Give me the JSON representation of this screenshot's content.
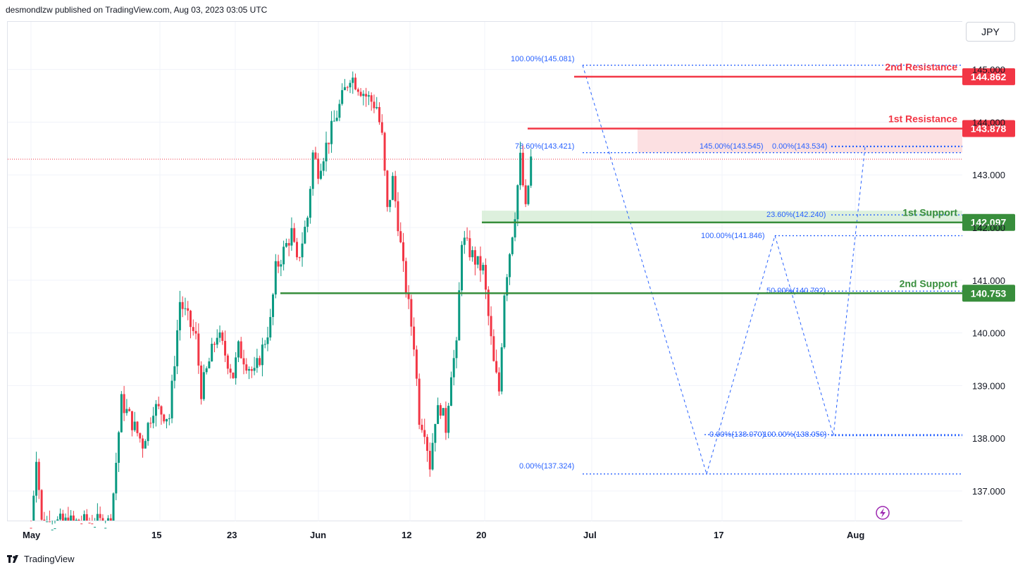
{
  "header": {
    "published_text": "desmondlzw published on TradingView.com, Aug 03, 2023 03:05 UTC"
  },
  "currency": "JPY",
  "footer": {
    "brand": "TradingView"
  },
  "colors": {
    "up": "#089981",
    "down": "#f23645",
    "resistance": "#f23645",
    "support": "#388e3c",
    "fib": "#2962ff",
    "resistance_zone": "#fbd5d8",
    "support_zone": "#d4ecd4"
  },
  "chart_data": {
    "type": "candlestick",
    "y_axis": {
      "ticks": [
        "145.000",
        "144.000",
        "143.000",
        "142.000",
        "141.000",
        "140.000",
        "139.000",
        "138.000",
        "137.000"
      ],
      "range": [
        136.4,
        145.35
      ]
    },
    "x_axis": {
      "labels": [
        "May",
        "15",
        "23",
        "Jun",
        "12",
        "20",
        "Jul",
        "17",
        "Aug"
      ]
    },
    "levels": [
      {
        "name": "2nd Resistance",
        "label": "2nd Resistance",
        "price": 144.862,
        "price_label": "144.862",
        "kind": "resistance"
      },
      {
        "name": "1st Resistance",
        "label": "1st Resistance",
        "price": 143.878,
        "price_label": "143.878",
        "kind": "resistance"
      },
      {
        "name": "1st Support",
        "label": "1st Support",
        "price": 142.097,
        "price_label": "142.097",
        "kind": "support"
      },
      {
        "name": "2nd Support",
        "label": "2nd Support",
        "price": 140.753,
        "price_label": "140.753",
        "kind": "support"
      }
    ],
    "fib_labels": [
      {
        "text": "100.00%(145.081)",
        "price": 145.081
      },
      {
        "text": "78.60%(143.421)",
        "price": 143.421
      },
      {
        "text": "0.00%(137.324)",
        "price": 137.324
      },
      {
        "text": "145.00%(143.545)",
        "price": 143.545
      },
      {
        "text": "0.00%(143.534)",
        "price": 143.534
      },
      {
        "text": "23.60%(142.240)",
        "price": 142.24
      },
      {
        "text": "100.00%(141.846)",
        "price": 141.846
      },
      {
        "text": "50.00%(140.792)",
        "price": 140.792
      },
      {
        "text": "0.00%(138.070)",
        "price": 138.07
      },
      {
        "text": "100.00%(138.050)",
        "price": 138.05
      }
    ],
    "anchor_points": [
      {
        "date": "May 01",
        "price": 136.3
      },
      {
        "date": "May 02",
        "price": 137.7
      },
      {
        "date": "May 03",
        "price": 136.4
      },
      {
        "date": "May 16",
        "price": 136.4
      },
      {
        "date": "May 18",
        "price": 138.7
      },
      {
        "date": "May 22",
        "price": 137.9
      },
      {
        "date": "May 24",
        "price": 138.6
      },
      {
        "date": "May 27",
        "price": 138.4
      },
      {
        "date": "May 29",
        "price": 140.6
      },
      {
        "date": "Jun 01",
        "price": 139.9
      },
      {
        "date": "Jun 02",
        "price": 138.9
      },
      {
        "date": "Jun 05",
        "price": 140.0
      },
      {
        "date": "Jun 08",
        "price": 139.2
      },
      {
        "date": "Jun 09",
        "price": 139.7
      },
      {
        "date": "Jun 12",
        "price": 139.2
      },
      {
        "date": "Jun 15",
        "price": 140.2
      },
      {
        "date": "Jun 16",
        "price": 141.2
      },
      {
        "date": "Jun 19",
        "price": 141.9
      },
      {
        "date": "Jun 20",
        "price": 141.3
      },
      {
        "date": "Jun 22",
        "price": 142.2
      },
      {
        "date": "Jun 23",
        "price": 143.4
      },
      {
        "date": "Jun 24",
        "price": 143.1
      },
      {
        "date": "Jun 27",
        "price": 144.0
      },
      {
        "date": "Jun 30",
        "price": 144.9
      },
      {
        "date": "Jul 03",
        "price": 144.5
      },
      {
        "date": "Jul 05",
        "price": 144.3
      },
      {
        "date": "Jul 06",
        "price": 143.7
      },
      {
        "date": "Jul 07",
        "price": 142.3
      },
      {
        "date": "Jul 08",
        "price": 142.9
      },
      {
        "date": "Jul 09",
        "price": 142.1
      },
      {
        "date": "Jul 10",
        "price": 141.2
      },
      {
        "date": "Jul 12",
        "price": 139.8
      },
      {
        "date": "Jul 13",
        "price": 138.4
      },
      {
        "date": "Jul 14",
        "price": 138.2
      },
      {
        "date": "Jul 15",
        "price": 137.5
      },
      {
        "date": "Jul 16",
        "price": 138.4
      },
      {
        "date": "Jul 17",
        "price": 138.6
      },
      {
        "date": "Jul 18",
        "price": 138.2
      },
      {
        "date": "Jul 19",
        "price": 139.3
      },
      {
        "date": "Jul 20",
        "price": 139.7
      },
      {
        "date": "Jul 21",
        "price": 141.8
      },
      {
        "date": "Jul 24",
        "price": 141.3
      },
      {
        "date": "Jul 25",
        "price": 141.2
      },
      {
        "date": "Jul 26",
        "price": 140.3
      },
      {
        "date": "Jul 27",
        "price": 139.4
      },
      {
        "date": "Jul 28",
        "price": 138.9
      },
      {
        "date": "Jul 29",
        "price": 140.8
      },
      {
        "date": "Jul 31",
        "price": 142.3
      },
      {
        "date": "Aug 01",
        "price": 143.3
      },
      {
        "date": "Aug 02",
        "price": 142.3
      },
      {
        "date": "Aug 03",
        "price": 143.3
      }
    ]
  }
}
